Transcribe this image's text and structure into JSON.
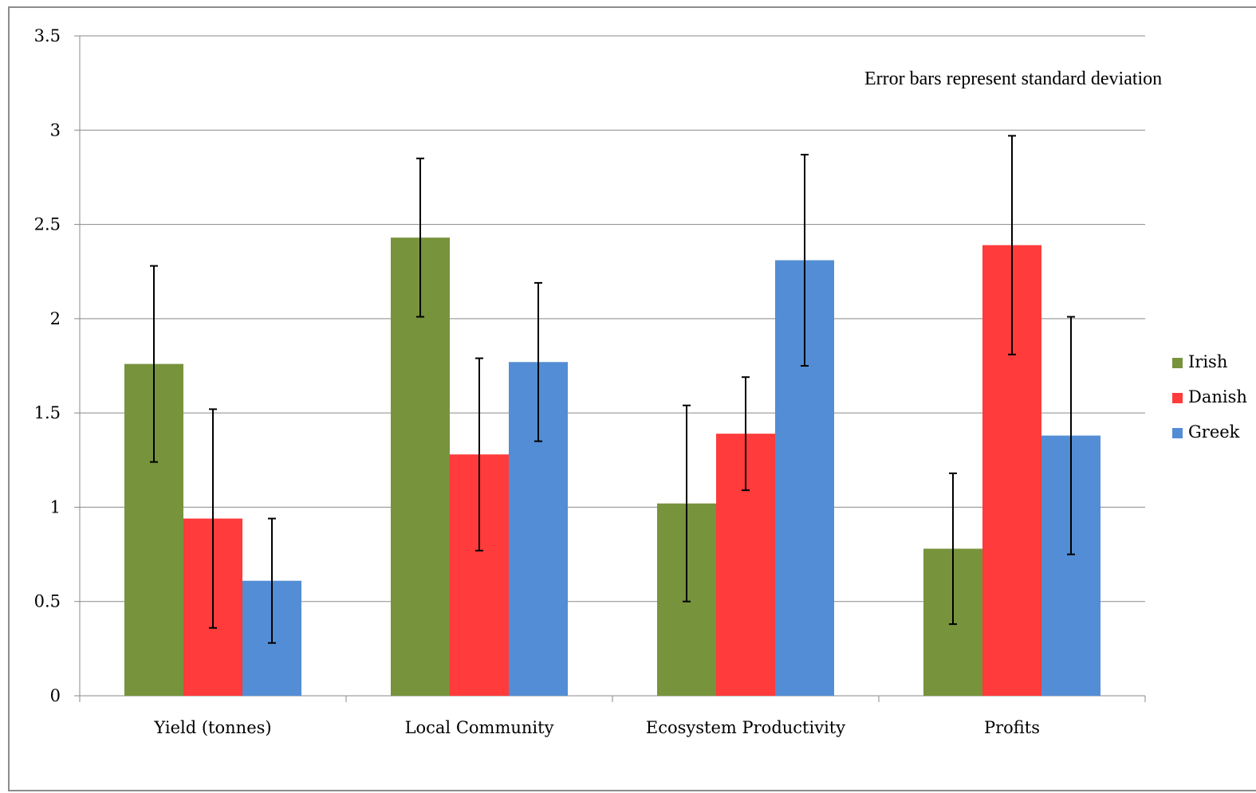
{
  "chart_data": {
    "type": "bar",
    "title": "",
    "xlabel": "",
    "ylabel": "",
    "categories": [
      "Yield (tonnes)",
      "Local Community",
      "Ecosystem Productivity",
      "Profits"
    ],
    "series": [
      {
        "name": "Irish",
        "color": "#77933c",
        "values": [
          1.76,
          2.43,
          1.02,
          0.78
        ],
        "error": [
          0.52,
          0.42,
          0.52,
          0.4
        ]
      },
      {
        "name": "Danish",
        "color": "#ff3b3b",
        "values": [
          0.94,
          1.28,
          1.39,
          2.39
        ],
        "error": [
          0.58,
          0.51,
          0.3,
          0.58
        ]
      },
      {
        "name": "Greek",
        "color": "#538dd5",
        "values": [
          0.61,
          1.77,
          2.31,
          1.38
        ],
        "error": [
          0.33,
          0.42,
          0.56,
          0.63
        ]
      }
    ],
    "ylim": [
      0,
      3.5
    ],
    "yticks": [
      "0",
      "0.5",
      "1",
      "1.5",
      "2",
      "2.5",
      "3",
      "3.5"
    ],
    "grid": true,
    "legend": "right",
    "annotation": "Error bars represent standard deviation"
  }
}
